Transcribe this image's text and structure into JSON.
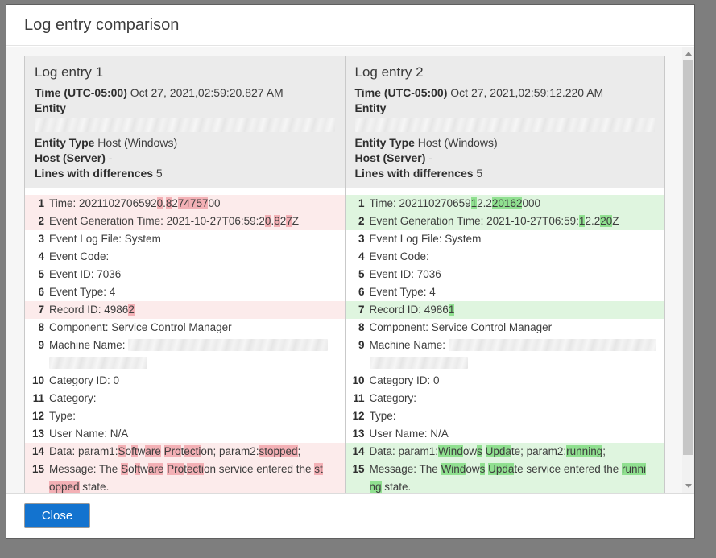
{
  "dialog": {
    "title": "Log entry comparison"
  },
  "footer": {
    "close_label": "Close"
  },
  "colors": {
    "backdrop": "#7e7e7e",
    "header_bg": "#ebebeb",
    "accent_blue": "#1373cf",
    "pink_bg": "#fcebeb",
    "pink_hl": "#f3b0b5",
    "green_bg": "#dff5df",
    "green_hl": "#90e090"
  },
  "panels": [
    {
      "title": "Log entry 1",
      "diff": "pink",
      "meta": {
        "time_label": "Time (UTC-05:00)",
        "time_value": "Oct 27, 2021,02:59:20.827 AM",
        "entity_label": "Entity",
        "entity_type_label": "Entity Type",
        "entity_type_value": "Host (Windows)",
        "host_label": "Host (Server)",
        "host_value": "-",
        "diff_label": "Lines with differences",
        "diff_count": "5"
      },
      "lines": [
        {
          "n": 1,
          "d": true,
          "parts": [
            {
              "t": "Time: 2021102706592"
            },
            {
              "t": "0",
              "h": 1
            },
            {
              "t": "."
            },
            {
              "t": "8",
              "h": 1
            },
            {
              "t": "2"
            },
            {
              "t": "74757",
              "h": 1
            },
            {
              "t": "00"
            }
          ]
        },
        {
          "n": 2,
          "d": true,
          "parts": [
            {
              "t": "Event Generation Time: 2021-10-27T06:59:2"
            },
            {
              "t": "0",
              "h": 1
            },
            {
              "t": "."
            },
            {
              "t": "8",
              "h": 1
            },
            {
              "t": "2"
            },
            {
              "t": "7",
              "h": 1
            },
            {
              "t": "Z"
            }
          ]
        },
        {
          "n": 3,
          "d": false,
          "parts": [
            {
              "t": "Event Log File: System"
            }
          ]
        },
        {
          "n": 4,
          "d": false,
          "parts": [
            {
              "t": "Event Code:"
            }
          ]
        },
        {
          "n": 5,
          "d": false,
          "parts": [
            {
              "t": "Event ID: 7036"
            }
          ]
        },
        {
          "n": 6,
          "d": false,
          "parts": [
            {
              "t": "Event Type: 4"
            }
          ]
        },
        {
          "n": 7,
          "d": true,
          "parts": [
            {
              "t": "Record ID: 4986"
            },
            {
              "t": "2",
              "h": 1
            }
          ]
        },
        {
          "n": 8,
          "d": false,
          "parts": [
            {
              "t": "Component: Service Control Manager"
            }
          ]
        },
        {
          "n": 9,
          "d": false,
          "parts": [
            {
              "t": "Machine Name: "
            },
            {
              "r": 248
            },
            {
              "br": 1
            },
            {
              "r": 122
            }
          ]
        },
        {
          "n": 10,
          "d": false,
          "parts": [
            {
              "t": "Category ID: 0"
            }
          ]
        },
        {
          "n": 11,
          "d": false,
          "parts": [
            {
              "t": "Category:"
            }
          ]
        },
        {
          "n": 12,
          "d": false,
          "parts": [
            {
              "t": "Type:"
            }
          ]
        },
        {
          "n": 13,
          "d": false,
          "parts": [
            {
              "t": "User Name: N/A"
            }
          ]
        },
        {
          "n": 14,
          "d": true,
          "parts": [
            {
              "t": "Data: param1:"
            },
            {
              "t": "S",
              "h": 1
            },
            {
              "t": "o"
            },
            {
              "t": "ft",
              "h": 1
            },
            {
              "t": "w"
            },
            {
              "t": "are",
              "h": 1
            },
            {
              "t": " "
            },
            {
              "t": "Pro",
              "h": 1
            },
            {
              "t": "t"
            },
            {
              "t": "ecti",
              "h": 1
            },
            {
              "t": "on; param2:"
            },
            {
              "t": "stopped",
              "h": 1
            },
            {
              "t": ";"
            }
          ]
        },
        {
          "n": 15,
          "d": true,
          "parts": [
            {
              "t": "Message: The "
            },
            {
              "t": "S",
              "h": 1
            },
            {
              "t": "o"
            },
            {
              "t": "ft",
              "h": 1
            },
            {
              "t": "w"
            },
            {
              "t": "are",
              "h": 1
            },
            {
              "t": " "
            },
            {
              "t": "Pro",
              "h": 1
            },
            {
              "t": "t"
            },
            {
              "t": "ecti",
              "h": 1
            },
            {
              "t": "on service entered the "
            },
            {
              "t": "st",
              "h": 1
            },
            {
              "br": 1
            },
            {
              "t": "opped",
              "h": 1
            },
            {
              "t": " state."
            }
          ]
        }
      ]
    },
    {
      "title": "Log entry 2",
      "diff": "green",
      "meta": {
        "time_label": "Time (UTC-05:00)",
        "time_value": "Oct 27, 2021,02:59:12.220 AM",
        "entity_label": "Entity",
        "entity_type_label": "Entity Type",
        "entity_type_value": "Host (Windows)",
        "host_label": "Host (Server)",
        "host_value": "-",
        "diff_label": "Lines with differences",
        "diff_count": "5"
      },
      "lines": [
        {
          "n": 1,
          "d": true,
          "parts": [
            {
              "t": "Time: 202110270659"
            },
            {
              "t": "1",
              "h": 1
            },
            {
              "t": "2.2"
            },
            {
              "t": "20162",
              "h": 1
            },
            {
              "t": "000"
            }
          ]
        },
        {
          "n": 2,
          "d": true,
          "parts": [
            {
              "t": "Event Generation Time: 2021-10-27T06:59:"
            },
            {
              "t": "1",
              "h": 1
            },
            {
              "t": "2.2"
            },
            {
              "t": "20",
              "h": 1
            },
            {
              "t": "Z"
            }
          ]
        },
        {
          "n": 3,
          "d": false,
          "parts": [
            {
              "t": "Event Log File: System"
            }
          ]
        },
        {
          "n": 4,
          "d": false,
          "parts": [
            {
              "t": "Event Code:"
            }
          ]
        },
        {
          "n": 5,
          "d": false,
          "parts": [
            {
              "t": "Event ID: 7036"
            }
          ]
        },
        {
          "n": 6,
          "d": false,
          "parts": [
            {
              "t": "Event Type: 4"
            }
          ]
        },
        {
          "n": 7,
          "d": true,
          "parts": [
            {
              "t": "Record ID: 4986"
            },
            {
              "t": "1",
              "h": 1
            }
          ]
        },
        {
          "n": 8,
          "d": false,
          "parts": [
            {
              "t": "Component: Service Control Manager"
            }
          ]
        },
        {
          "n": 9,
          "d": false,
          "parts": [
            {
              "t": "Machine Name: "
            },
            {
              "r": 258
            },
            {
              "br": 1
            },
            {
              "r": 122
            }
          ]
        },
        {
          "n": 10,
          "d": false,
          "parts": [
            {
              "t": "Category ID: 0"
            }
          ]
        },
        {
          "n": 11,
          "d": false,
          "parts": [
            {
              "t": "Category:"
            }
          ]
        },
        {
          "n": 12,
          "d": false,
          "parts": [
            {
              "t": "Type:"
            }
          ]
        },
        {
          "n": 13,
          "d": false,
          "parts": [
            {
              "t": "User Name: N/A"
            }
          ]
        },
        {
          "n": 14,
          "d": true,
          "parts": [
            {
              "t": "Data: param1:"
            },
            {
              "t": "Wind",
              "h": 1
            },
            {
              "t": "ow"
            },
            {
              "t": "s",
              "h": 1
            },
            {
              "t": " "
            },
            {
              "t": "Upda",
              "h": 1
            },
            {
              "t": "te; param2:"
            },
            {
              "t": "running",
              "h": 1
            },
            {
              "t": ";"
            }
          ]
        },
        {
          "n": 15,
          "d": true,
          "parts": [
            {
              "t": "Message: The "
            },
            {
              "t": "Wind",
              "h": 1
            },
            {
              "t": "ow"
            },
            {
              "t": "s",
              "h": 1
            },
            {
              "t": " "
            },
            {
              "t": "Upda",
              "h": 1
            },
            {
              "t": "te service entered the "
            },
            {
              "t": "runni",
              "h": 1
            },
            {
              "br": 1
            },
            {
              "t": "ng",
              "h": 1
            },
            {
              "t": " state."
            }
          ]
        }
      ]
    }
  ]
}
